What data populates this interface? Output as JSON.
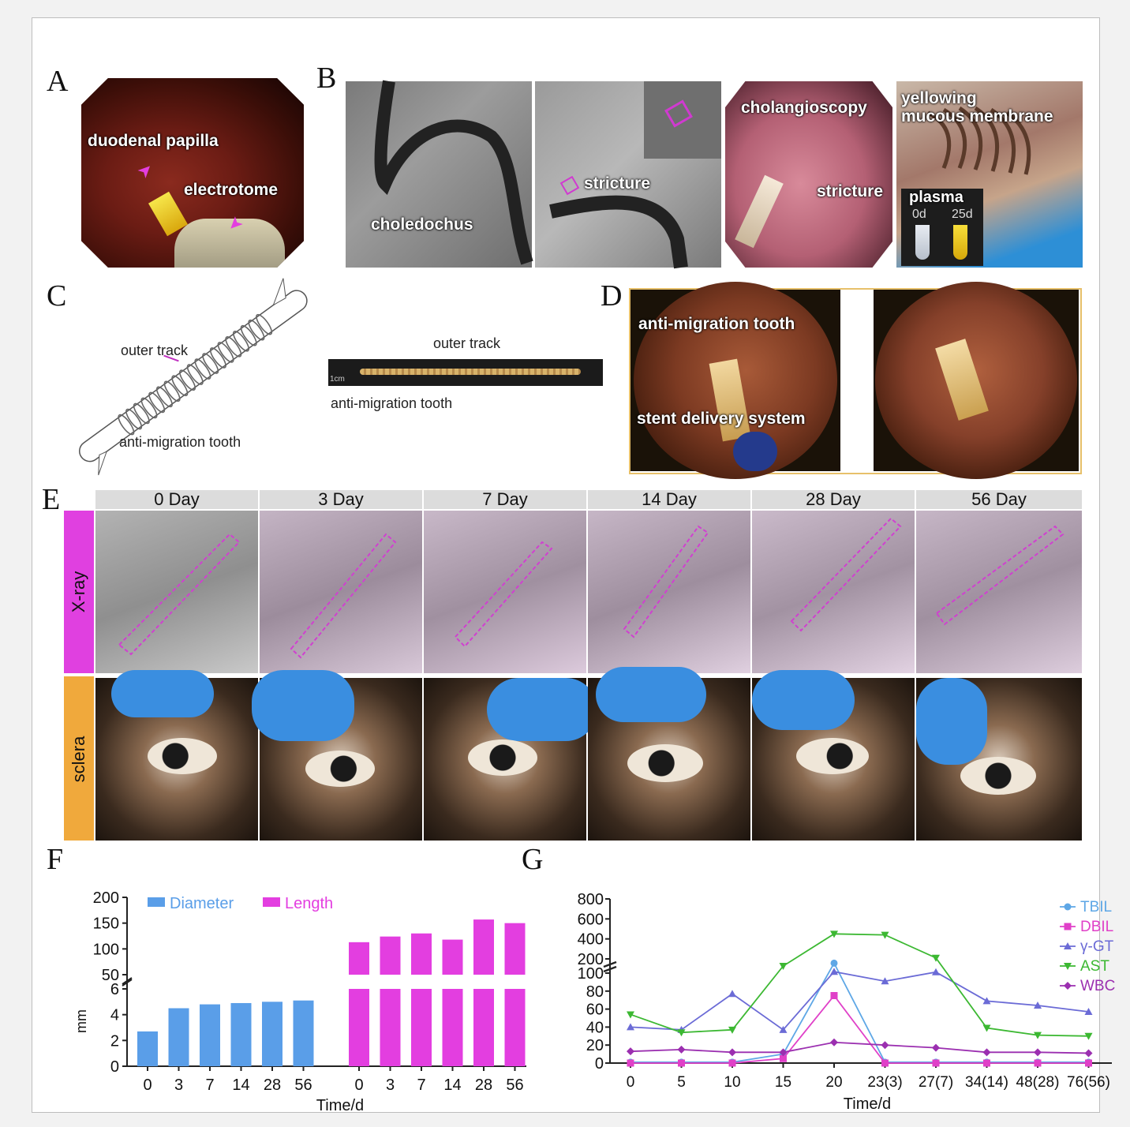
{
  "panels": {
    "A": "A",
    "B": "B",
    "C": "C",
    "D": "D",
    "E": "E",
    "F": "F",
    "G": "G"
  },
  "panel_a": {
    "papilla": "duodenal papilla",
    "electrotome": "electrotome"
  },
  "panel_b": {
    "choledochus": "choledochus",
    "stricture1": "stricture",
    "cholangioscopy": "cholangioscopy",
    "stricture2": "stricture",
    "yellowing": "yellowing",
    "mucous": "mucous membrane",
    "plasma": "plasma",
    "day0": "0d",
    "day25": "25d"
  },
  "panel_c": {
    "outer_track_1": "outer track",
    "tooth_1": "anti-migration tooth",
    "outer_track_2": "outer track",
    "tooth_2": "anti-migration tooth",
    "scale": "1cm"
  },
  "panel_d": {
    "tooth": "anti-migration tooth",
    "delivery": "stent delivery system"
  },
  "panel_e": {
    "days": [
      "0 Day",
      "3 Day",
      "7 Day",
      "14 Day",
      "28 Day",
      "56 Day"
    ],
    "rows": [
      "X-ray",
      "sclera"
    ],
    "row_colors": [
      "#e040e0",
      "#f0a93c"
    ]
  },
  "colors": {
    "diameter": "#5a9ee8",
    "length": "#e33ee0",
    "tbil": "#5ea7e6",
    "dbil": "#e040c8",
    "ggt": "#6b6bd6",
    "ast": "#3cb832",
    "wbc": "#9b2fb0"
  },
  "chart_data": [
    {
      "type": "bar",
      "panel": "F",
      "categories": [
        "0",
        "3",
        "7",
        "14",
        "28",
        "56"
      ],
      "series": [
        {
          "name": "Diameter",
          "values": [
            2.7,
            4.5,
            4.8,
            4.9,
            5.0,
            5.1
          ]
        },
        {
          "name": "Length",
          "values": [
            113,
            124,
            130,
            118,
            157,
            150
          ]
        }
      ],
      "xlabel": "Time/d",
      "ylabel": "mm",
      "y_ticks_lower": [
        "0",
        "2",
        "4",
        "6"
      ],
      "y_ticks_upper": [
        "50",
        "100",
        "150",
        "200"
      ],
      "ylim": [
        0,
        200
      ],
      "axis_break": [
        6,
        50
      ]
    },
    {
      "type": "line",
      "panel": "G",
      "x_ticks": [
        "0",
        "5",
        "10",
        "15",
        "20",
        "23(3)",
        "27(7)",
        "34(14)",
        "48(28)",
        "76(56)"
      ],
      "series": [
        {
          "name": "TBIL",
          "values": [
            1,
            1,
            1,
            10,
            170,
            1,
            1,
            1,
            1,
            1
          ]
        },
        {
          "name": "DBIL",
          "values": [
            0,
            0,
            0,
            5,
            75,
            0,
            0,
            0,
            0,
            0
          ]
        },
        {
          "name": "γ-GT",
          "values": [
            40,
            37,
            77,
            37,
            110,
            91,
            107,
            69,
            64,
            57
          ]
        },
        {
          "name": "AST",
          "values": [
            54,
            34,
            37,
            150,
            450,
            440,
            210,
            39,
            31,
            30
          ]
        },
        {
          "name": "WBC",
          "values": [
            13,
            15,
            12,
            12,
            23,
            20,
            17,
            12,
            12,
            11
          ]
        }
      ],
      "xlabel": "Time/d",
      "y_ticks_lower": [
        "0",
        "20",
        "40",
        "60",
        "80",
        "100"
      ],
      "y_ticks_upper": [
        "200",
        "400",
        "600",
        "800"
      ],
      "ylim": [
        0,
        800
      ],
      "axis_break": [
        100,
        200
      ]
    }
  ]
}
